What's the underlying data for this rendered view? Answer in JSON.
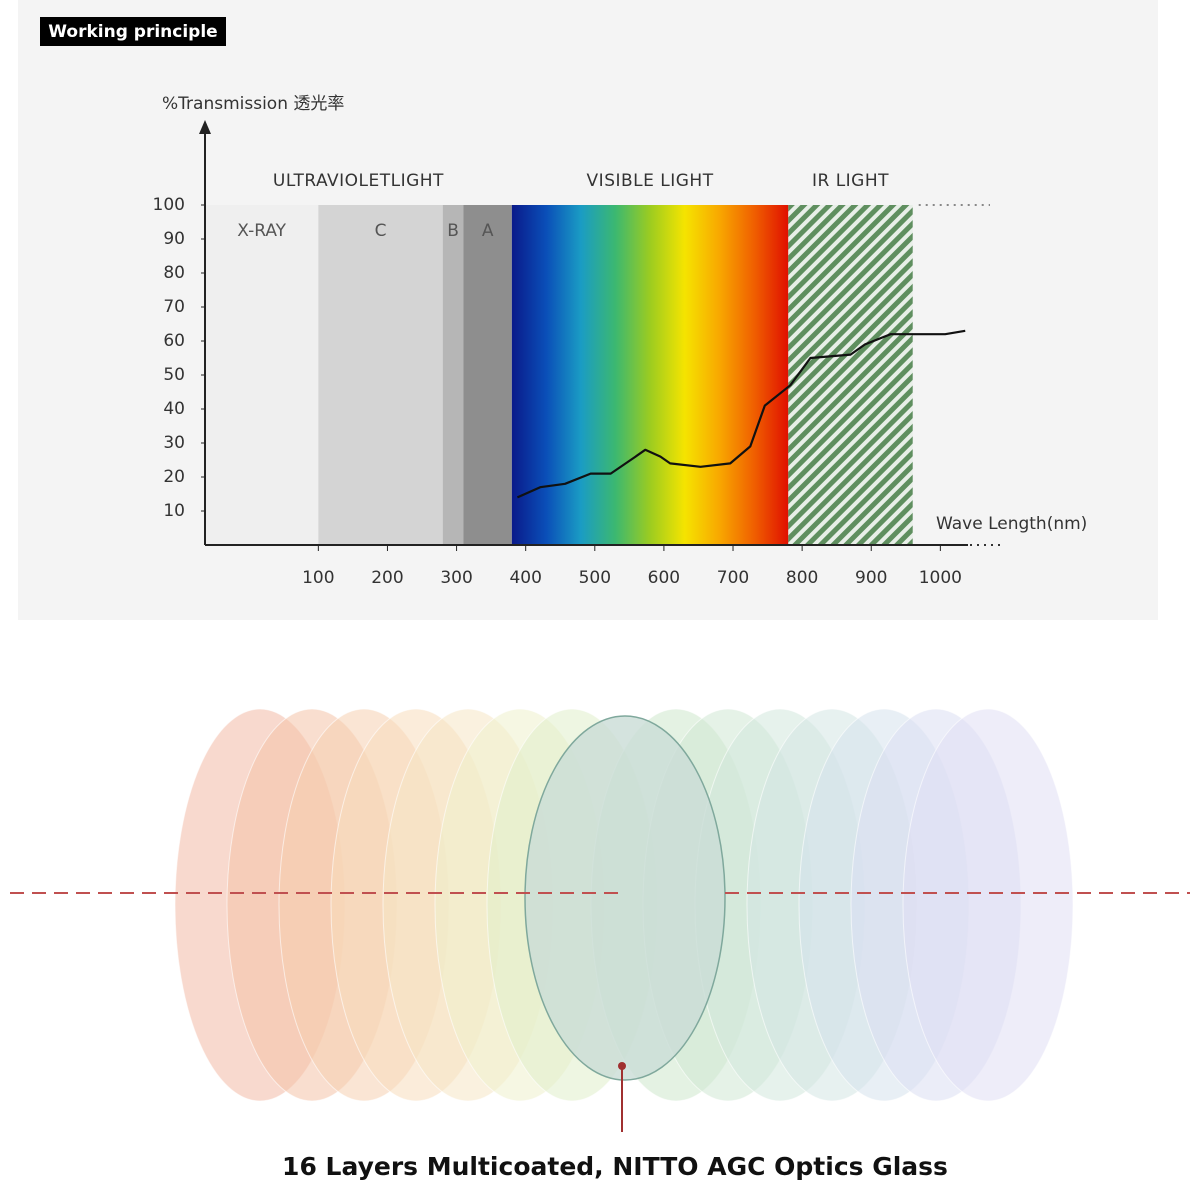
{
  "header": {
    "title": "Working principle"
  },
  "chart_data": {
    "type": "line",
    "ylabel": "%Transmission 透光率",
    "xlabel": "Wave Length(nm)",
    "xlim": [
      -64,
      1040
    ],
    "ylim": [
      0,
      120
    ],
    "xticks": [
      100,
      200,
      300,
      400,
      500,
      600,
      700,
      800,
      900,
      1000
    ],
    "yticks": [
      10,
      20,
      30,
      40,
      50,
      60,
      70,
      80,
      90,
      100
    ],
    "grid": false,
    "spectrum": [
      {
        "label": "ULTRAVIOLETLIGHT",
        "range": [
          -64,
          380
        ]
      },
      {
        "label": "VISIBLE LIGHT",
        "range": [
          380,
          780
        ]
      },
      {
        "label": "IR LIGHT",
        "range": [
          780,
          960
        ]
      }
    ],
    "regions": [
      {
        "label": "X-RAY",
        "range": [
          -64,
          100
        ],
        "color": "#efefef"
      },
      {
        "label": "C",
        "range": [
          100,
          280
        ],
        "color": "#d4d4d4"
      },
      {
        "label": "B",
        "range": [
          280,
          310
        ],
        "color": "#b6b6b6"
      },
      {
        "label": "A",
        "range": [
          310,
          380
        ],
        "color": "#8e8e8e"
      },
      {
        "range": [
          380,
          780
        ],
        "color": [
          "#0a1a8a",
          "#0a4fb8",
          "#1a9cc4",
          "#3cb870",
          "#9ccc20",
          "#f5e400",
          "#f8a800",
          "#f06000",
          "#e01000"
        ]
      },
      {
        "range": [
          780,
          960
        ],
        "color": "#5f8f5f",
        "hatch": true
      }
    ],
    "series": [
      {
        "color": "#111111",
        "x": [
          388,
          421,
          457,
          494,
          523,
          559,
          573,
          595,
          609,
          653,
          696,
          725,
          746,
          783,
          812,
          870,
          891,
          928,
          1007,
          1036
        ],
        "values": [
          14,
          17,
          18,
          21,
          21,
          26,
          28,
          26,
          24,
          23,
          24,
          29,
          41,
          47,
          55,
          56,
          59,
          62,
          62,
          63
        ]
      }
    ]
  },
  "caption": "16 Layers Multicoated, NITTO AGC Optics Glass"
}
